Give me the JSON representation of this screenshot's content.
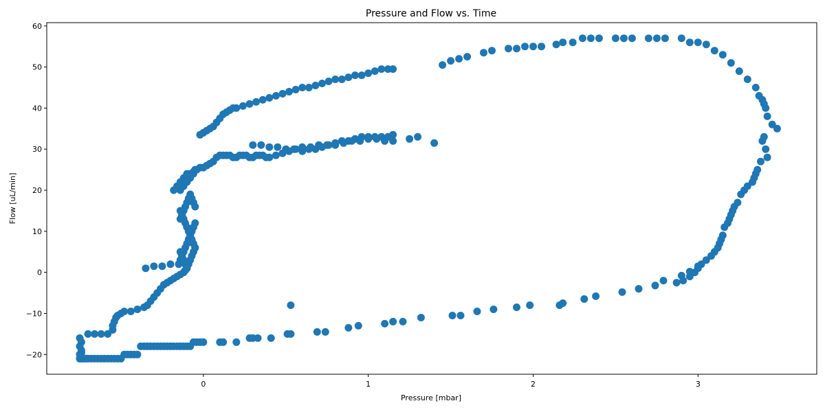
{
  "chart_data": {
    "type": "scatter",
    "title": "Pressure and Flow vs. Time",
    "xlabel": "Pressure [mbar]",
    "ylabel": "Flow [uL/min]",
    "xlim": [
      -0.95,
      3.72
    ],
    "ylim": [
      -24.8,
      60.8
    ],
    "xticks": [
      0,
      1,
      2,
      3
    ],
    "yticks": [
      -20,
      -10,
      0,
      10,
      20,
      30,
      40,
      50,
      60
    ],
    "grid": false,
    "marker_color": "#1f77b4",
    "series": [
      {
        "x": [
          -0.75,
          -0.74,
          -0.73,
          -0.72,
          -0.71,
          -0.7,
          -0.68,
          -0.66,
          -0.64,
          -0.62,
          -0.6,
          -0.58,
          -0.56,
          -0.54,
          -0.52,
          -0.5,
          -0.48,
          -0.46,
          -0.44,
          -0.42,
          -0.4,
          -0.38,
          -0.36,
          -0.34,
          -0.32,
          -0.3,
          -0.28,
          -0.26,
          -0.24,
          -0.22,
          -0.2,
          -0.18,
          -0.16,
          -0.14,
          -0.12,
          -0.1,
          -0.08,
          -0.06,
          -0.04,
          -0.02,
          0.0,
          0.1,
          0.12,
          0.2,
          0.28,
          0.3,
          0.33,
          0.41,
          0.51,
          0.53,
          0.69,
          0.74,
          0.88,
          0.94,
          1.1,
          1.15,
          1.21,
          1.32,
          1.51,
          1.56,
          1.66,
          1.76,
          1.9,
          1.98,
          2.16,
          2.18,
          2.31,
          2.38,
          2.54,
          2.64,
          2.74,
          2.79,
          2.9,
          2.95,
          3.0,
          0.53,
          -0.75,
          -0.74,
          -0.75,
          -0.74,
          -0.75,
          -0.74,
          -0.75,
          -0.74,
          -0.7,
          -0.66,
          -0.62,
          -0.58,
          -0.55,
          -0.55,
          -0.54,
          -0.53,
          -0.52,
          -0.5,
          -0.48,
          -0.44,
          -0.4,
          -0.36,
          -0.34,
          -0.32,
          -0.3,
          -0.28,
          -0.26,
          -0.24,
          -0.22,
          -0.2,
          -0.18,
          -0.16,
          -0.14,
          -0.12,
          -0.11,
          -0.1,
          -0.35,
          -0.3,
          -0.25,
          -0.2,
          -0.15,
          -0.11,
          -0.14,
          -0.13,
          -0.12,
          -0.11,
          -0.1,
          -0.09,
          -0.08,
          -0.07,
          -0.06,
          -0.05,
          -0.14,
          -0.13,
          -0.12,
          -0.11,
          -0.1,
          -0.09,
          -0.08,
          -0.07,
          -0.06,
          -0.05,
          -0.14,
          -0.13,
          -0.12,
          -0.11,
          -0.1,
          -0.09,
          -0.08,
          -0.07,
          -0.06,
          -0.05,
          -0.14,
          -0.13,
          -0.12,
          -0.11,
          -0.1,
          -0.09,
          -0.08,
          -0.07,
          -0.06,
          -0.05,
          -0.14,
          -0.12,
          -0.1,
          -0.08,
          -0.06,
          -0.05,
          -0.18,
          -0.16,
          -0.14,
          -0.12,
          -0.1,
          -0.08,
          -0.06,
          -0.04,
          -0.02,
          0.0,
          0.02,
          0.04,
          0.06,
          0.08,
          0.1,
          0.12,
          0.14,
          0.16,
          0.18,
          0.2,
          0.22,
          0.24,
          0.26,
          0.28,
          0.3,
          0.32,
          0.34,
          0.36,
          0.38,
          0.4,
          0.44,
          0.48,
          0.52,
          0.56,
          0.6,
          0.64,
          0.68,
          0.72,
          0.76,
          0.8,
          0.84,
          0.88,
          0.92,
          0.96,
          1.0,
          1.04,
          1.08,
          1.12,
          1.15,
          -0.02,
          0.0,
          0.02,
          0.04,
          0.06,
          0.08,
          0.1,
          0.12,
          0.14,
          0.16,
          0.18,
          0.2,
          0.24,
          0.28,
          0.32,
          0.36,
          0.4,
          0.44,
          0.48,
          0.52,
          0.56,
          0.6,
          0.64,
          0.68,
          0.72,
          0.76,
          0.8,
          0.84,
          0.88,
          0.92,
          0.96,
          1.0,
          1.04,
          1.08,
          1.12,
          1.15,
          0.3,
          0.35,
          0.4,
          0.45,
          0.5,
          0.55,
          0.6,
          0.65,
          0.7,
          0.75,
          0.8,
          0.85,
          0.9,
          0.95,
          1.0,
          1.05,
          1.1,
          1.15,
          1.25,
          1.3,
          1.4,
          1.45,
          1.5,
          1.55,
          1.6,
          1.7,
          1.75,
          1.85,
          1.9,
          1.95,
          2.0,
          2.05,
          2.14,
          2.18,
          2.24,
          2.3,
          2.35,
          2.4,
          2.5,
          2.55,
          2.6,
          2.7,
          2.75,
          2.8,
          2.9,
          2.95,
          3.0,
          3.05,
          3.1,
          3.15,
          3.2,
          3.25,
          3.3,
          3.35,
          3.37,
          3.39,
          3.4,
          3.41,
          3.42,
          3.45,
          3.48,
          3.4,
          3.39,
          3.41,
          3.42,
          3.38,
          3.36,
          3.35,
          3.34,
          3.33,
          3.3,
          3.28,
          3.26,
          3.24,
          3.22,
          3.21,
          3.2,
          3.19,
          3.18,
          3.16,
          3.15,
          3.14,
          3.13,
          3.12,
          3.1,
          3.08,
          3.05,
          3.02,
          3.0,
          2.98,
          2.95,
          2.91,
          2.87
        ],
        "y": [
          -21,
          -21,
          -21,
          -21,
          -21,
          -21,
          -21,
          -21,
          -21,
          -21,
          -21,
          -21,
          -21,
          -21,
          -21,
          -21,
          -20,
          -20,
          -20,
          -20,
          -20,
          -18,
          -18,
          -18,
          -18,
          -18,
          -18,
          -18,
          -18,
          -18,
          -18,
          -18,
          -18,
          -18,
          -18,
          -18,
          -18,
          -17,
          -17,
          -17,
          -17,
          -17,
          -17,
          -17,
          -16,
          -16,
          -16,
          -16,
          -15,
          -15,
          -14.5,
          -14.5,
          -13.5,
          -13,
          -12.5,
          -12,
          -12,
          -11,
          -10.5,
          -10.5,
          -9.5,
          -9,
          -8.5,
          -8,
          -8,
          -7.5,
          -6.5,
          -5.8,
          -4.8,
          -4,
          -3.2,
          -2,
          -0.8,
          0.2,
          1.5,
          -8,
          -16,
          -17,
          -18,
          -19,
          -20,
          -20.5,
          -21,
          -19.5,
          -15,
          -15,
          -15,
          -15,
          -14,
          -13,
          -12,
          -11,
          -10.5,
          -10,
          -9.5,
          -9.5,
          -9,
          -8.5,
          -8,
          -7,
          -6,
          -5,
          -4,
          -3,
          -2.5,
          -2,
          -1.5,
          -1,
          -0.5,
          0,
          0.5,
          1,
          1,
          1.5,
          1.5,
          2,
          2,
          2.2,
          3,
          4,
          5,
          6,
          7,
          8,
          9,
          10,
          11,
          12,
          13,
          14,
          15,
          16,
          17,
          18,
          19,
          18,
          17,
          16,
          15,
          14,
          13,
          12,
          11,
          10,
          9,
          8,
          7,
          6,
          5,
          4,
          3,
          2,
          1,
          2,
          3,
          4,
          5,
          6,
          20,
          21,
          22,
          23,
          24,
          25,
          20,
          21,
          22,
          23,
          24,
          24,
          24.5,
          25,
          25.5,
          25.5,
          26,
          26.5,
          27,
          28,
          28.5,
          28.5,
          28.5,
          28.5,
          28,
          28,
          28.5,
          28.5,
          28.5,
          28,
          28,
          28.5,
          28.5,
          28.5,
          28,
          28,
          28.5,
          29,
          29.5,
          30,
          29.5,
          30,
          30,
          30.5,
          31,
          31.5,
          32,
          32,
          32.5,
          33,
          33,
          33,
          33,
          33,
          33.5,
          33.5,
          34,
          34.5,
          35,
          35.5,
          36.5,
          37.5,
          38.5,
          39,
          39.5,
          40,
          40,
          40.5,
          41,
          41.5,
          42,
          42.5,
          43,
          43.5,
          44,
          44.5,
          45,
          45,
          45.5,
          46,
          46.5,
          47,
          47,
          47.5,
          48,
          48,
          48.5,
          49,
          49.5,
          49.5,
          49.5,
          31,
          31,
          30.5,
          30.5,
          30,
          30,
          30.5,
          30.5,
          31,
          31,
          31,
          31.5,
          32,
          32,
          32.5,
          32.5,
          32,
          32,
          32.5,
          33,
          31.5,
          50.5,
          51.5,
          52,
          52.5,
          53.5,
          54,
          54.5,
          54.5,
          55,
          55,
          55,
          55.5,
          56,
          56,
          57,
          57,
          57,
          57,
          57,
          57,
          57,
          57,
          57,
          57,
          56,
          56,
          55.5,
          54,
          53,
          51,
          49,
          47,
          45,
          43,
          42,
          41,
          40,
          38,
          36,
          35,
          33,
          32,
          30,
          28,
          27,
          25,
          24,
          23,
          22,
          21,
          20,
          19,
          17,
          16,
          15,
          14,
          13,
          12,
          11,
          9,
          8,
          7,
          6,
          5,
          4,
          3,
          2,
          1,
          0,
          -1,
          -2,
          -2.5
        ]
      }
    ]
  }
}
